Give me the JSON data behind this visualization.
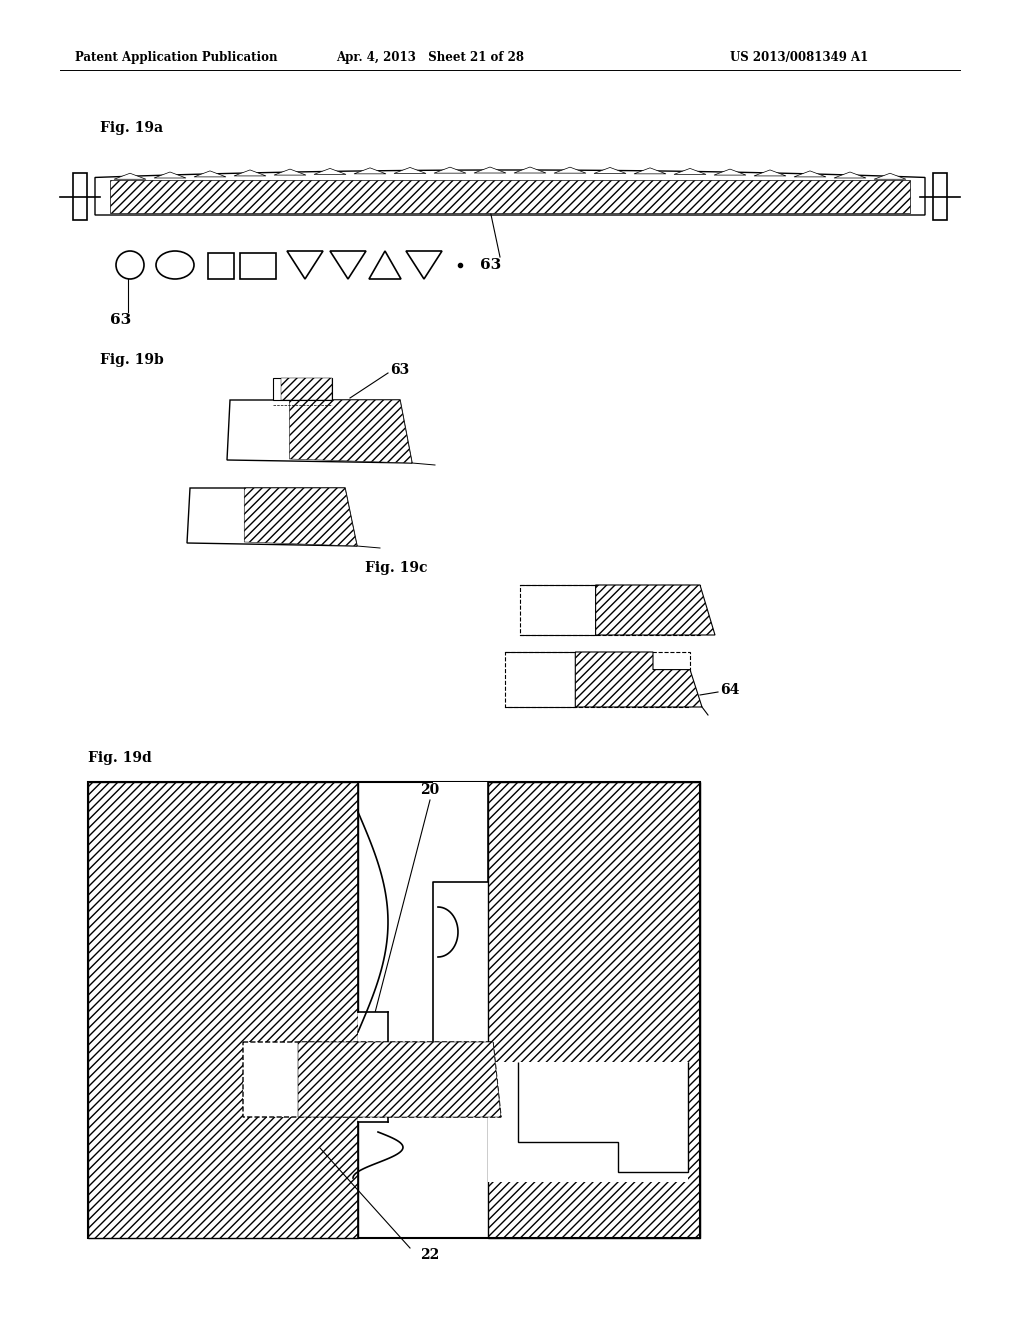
{
  "bg_color": "#ffffff",
  "lc": "#000000",
  "header_left": "Patent Application Publication",
  "header_mid": "Apr. 4, 2013   Sheet 21 of 28",
  "header_right": "US 2013/0081349 A1",
  "fig19a_label": "Fig. 19a",
  "fig19b_label": "Fig. 19b",
  "fig19c_label": "Fig. 19c",
  "fig19d_label": "Fig. 19d"
}
